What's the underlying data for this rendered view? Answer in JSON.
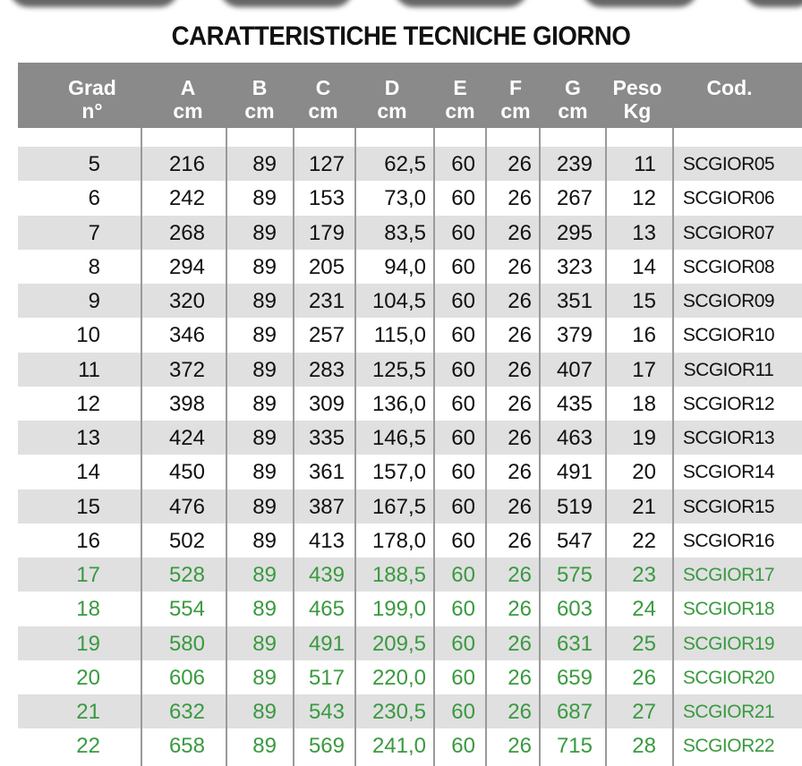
{
  "title": "CARATTERISTICHE TECNICHE GIORNO",
  "colors": {
    "header_bg": "#8a8a8b",
    "stripe": "#e0e0e1",
    "highlight_text": "#3a9a3f"
  },
  "headers": [
    [
      "Grad",
      "n°"
    ],
    [
      "A",
      "cm"
    ],
    [
      "B",
      "cm"
    ],
    [
      "C",
      "cm"
    ],
    [
      "D",
      "cm"
    ],
    [
      "E",
      "cm"
    ],
    [
      "F",
      "cm"
    ],
    [
      "G",
      "cm"
    ],
    [
      "Peso",
      "Kg"
    ],
    [
      "Cod.",
      ""
    ]
  ],
  "rows": [
    [
      "5",
      "216",
      "89",
      "127",
      "62,5",
      "60",
      "26",
      "239",
      "11",
      "SCGIOR05"
    ],
    [
      "6",
      "242",
      "89",
      "153",
      "73,0",
      "60",
      "26",
      "267",
      "12",
      "SCGIOR06"
    ],
    [
      "7",
      "268",
      "89",
      "179",
      "83,5",
      "60",
      "26",
      "295",
      "13",
      "SCGIOR07"
    ],
    [
      "8",
      "294",
      "89",
      "205",
      "94,0",
      "60",
      "26",
      "323",
      "14",
      "SCGIOR08"
    ],
    [
      "9",
      "320",
      "89",
      "231",
      "104,5",
      "60",
      "26",
      "351",
      "15",
      "SCGIOR09"
    ],
    [
      "10",
      "346",
      "89",
      "257",
      "115,0",
      "60",
      "26",
      "379",
      "16",
      "SCGIOR10"
    ],
    [
      "11",
      "372",
      "89",
      "283",
      "125,5",
      "60",
      "26",
      "407",
      "17",
      "SCGIOR11"
    ],
    [
      "12",
      "398",
      "89",
      "309",
      "136,0",
      "60",
      "26",
      "435",
      "18",
      "SCGIOR12"
    ],
    [
      "13",
      "424",
      "89",
      "335",
      "146,5",
      "60",
      "26",
      "463",
      "19",
      "SCGIOR13"
    ],
    [
      "14",
      "450",
      "89",
      "361",
      "157,0",
      "60",
      "26",
      "491",
      "20",
      "SCGIOR14"
    ],
    [
      "15",
      "476",
      "89",
      "387",
      "167,5",
      "60",
      "26",
      "519",
      "21",
      "SCGIOR15"
    ],
    [
      "16",
      "502",
      "89",
      "413",
      "178,0",
      "60",
      "26",
      "547",
      "22",
      "SCGIOR16"
    ],
    [
      "17",
      "528",
      "89",
      "439",
      "188,5",
      "60",
      "26",
      "575",
      "23",
      "SCGIOR17"
    ],
    [
      "18",
      "554",
      "89",
      "465",
      "199,0",
      "60",
      "26",
      "603",
      "24",
      "SCGIOR18"
    ],
    [
      "19",
      "580",
      "89",
      "491",
      "209,5",
      "60",
      "26",
      "631",
      "25",
      "SCGIOR19"
    ],
    [
      "20",
      "606",
      "89",
      "517",
      "220,0",
      "60",
      "26",
      "659",
      "26",
      "SCGIOR20"
    ],
    [
      "21",
      "632",
      "89",
      "543",
      "230,5",
      "60",
      "26",
      "687",
      "27",
      "SCGIOR21"
    ],
    [
      "22",
      "658",
      "89",
      "569",
      "241,0",
      "60",
      "26",
      "715",
      "28",
      "SCGIOR22"
    ]
  ],
  "highlighted_from_grad": "17"
}
